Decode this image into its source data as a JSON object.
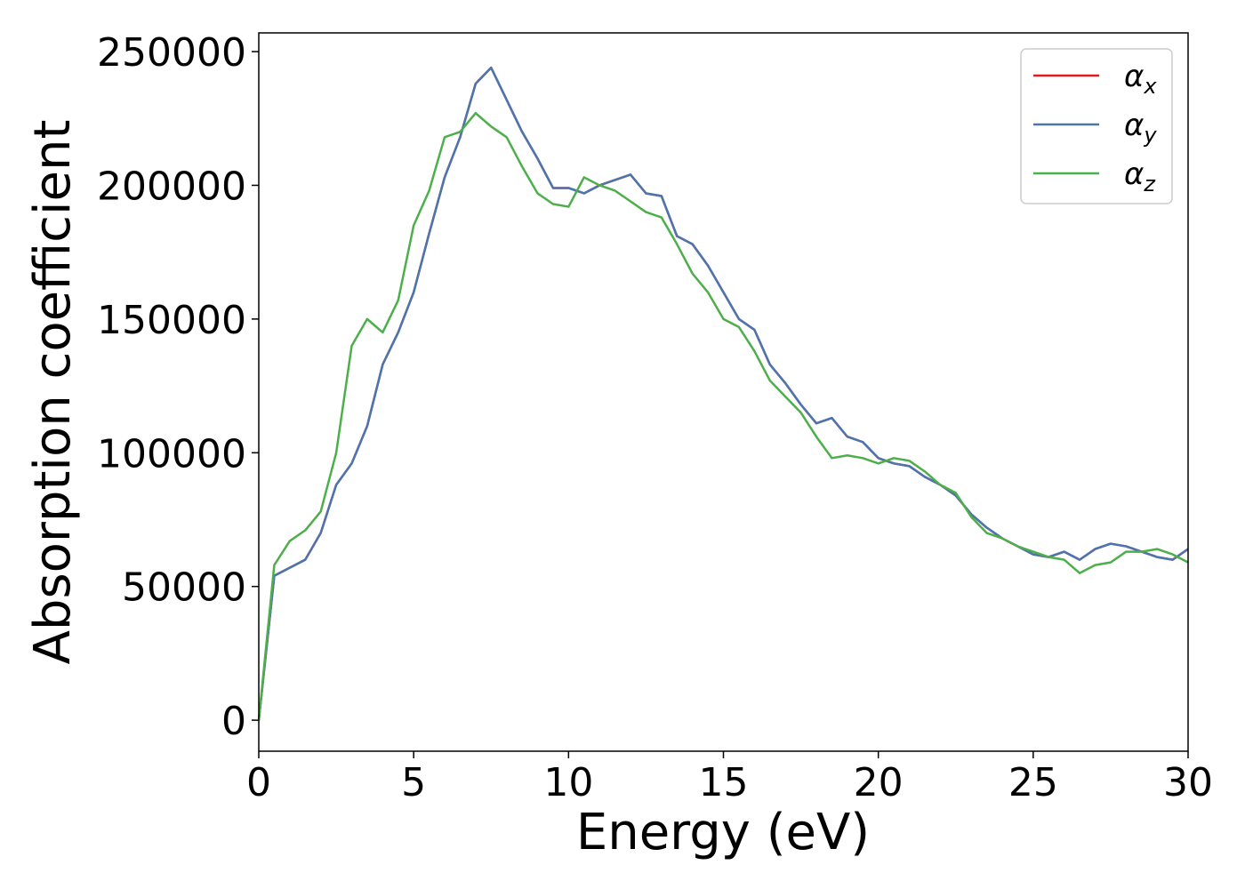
{
  "chart_data": {
    "type": "line",
    "xlabel": "Energy (eV)",
    "ylabel": "Absorption coefficient",
    "x": [
      0,
      0.5,
      1,
      1.5,
      2,
      2.5,
      3,
      3.5,
      4,
      4.5,
      5,
      5.5,
      6,
      6.5,
      7,
      7.5,
      8,
      8.5,
      9,
      9.5,
      10,
      10.5,
      11,
      11.5,
      12,
      12.5,
      13,
      13.5,
      14,
      14.5,
      15,
      15.5,
      16,
      16.5,
      17,
      17.5,
      18,
      18.5,
      19,
      19.5,
      20,
      20.5,
      21,
      21.5,
      22,
      22.5,
      23,
      23.5,
      24,
      24.5,
      25,
      25.5,
      26,
      26.5,
      27,
      27.5,
      28,
      28.5,
      29,
      29.5,
      30
    ],
    "series": [
      {
        "name": "αx",
        "color": "#e41a1c",
        "values": [
          0,
          54000,
          57000,
          60000,
          70000,
          88000,
          96000,
          110000,
          133000,
          145000,
          160000,
          182000,
          203000,
          218000,
          238000,
          244000,
          232000,
          220000,
          210000,
          199000,
          199000,
          197000,
          200000,
          202000,
          204000,
          197000,
          196000,
          181000,
          178000,
          170000,
          160000,
          150000,
          146000,
          133000,
          126000,
          118000,
          111000,
          113000,
          106000,
          104000,
          98000,
          96000,
          95000,
          91000,
          88000,
          84000,
          77000,
          72000,
          68000,
          65000,
          62000,
          61000,
          63000,
          60000,
          64000,
          66000,
          65000,
          63000,
          61000,
          60000,
          64000
        ]
      },
      {
        "name": "αy",
        "color": "#4a76b0",
        "values": [
          0,
          54000,
          57000,
          60000,
          70000,
          88000,
          96000,
          110000,
          133000,
          145000,
          160000,
          182000,
          203000,
          218000,
          238000,
          244000,
          232000,
          220000,
          210000,
          199000,
          199000,
          197000,
          200000,
          202000,
          204000,
          197000,
          196000,
          181000,
          178000,
          170000,
          160000,
          150000,
          146000,
          133000,
          126000,
          118000,
          111000,
          113000,
          106000,
          104000,
          98000,
          96000,
          95000,
          91000,
          88000,
          84000,
          77000,
          72000,
          68000,
          65000,
          62000,
          61000,
          63000,
          60000,
          64000,
          66000,
          65000,
          63000,
          61000,
          60000,
          64000
        ]
      },
      {
        "name": "αz",
        "color": "#4daf4a",
        "values": [
          0,
          58000,
          67000,
          71000,
          78000,
          100000,
          140000,
          150000,
          145000,
          157000,
          185000,
          198000,
          218000,
          220000,
          227000,
          222000,
          218000,
          207000,
          197000,
          193000,
          192000,
          203000,
          200000,
          198000,
          194000,
          190000,
          188000,
          178000,
          167000,
          160000,
          150000,
          147000,
          138000,
          127000,
          121000,
          115000,
          106000,
          98000,
          99000,
          98000,
          96000,
          98000,
          97000,
          93000,
          88000,
          85000,
          76000,
          70000,
          68000,
          65000,
          63000,
          61000,
          60000,
          55000,
          58000,
          59000,
          63000,
          63000,
          64000,
          62000,
          59000
        ]
      }
    ],
    "xlim": [
      0,
      30
    ],
    "xticks": [
      0,
      5,
      10,
      15,
      20,
      25,
      30
    ],
    "ylim": [
      -11600,
      257000
    ],
    "yticks": [
      0,
      50000,
      100000,
      150000,
      200000,
      250000
    ],
    "grid": false,
    "legend": "upper right"
  }
}
